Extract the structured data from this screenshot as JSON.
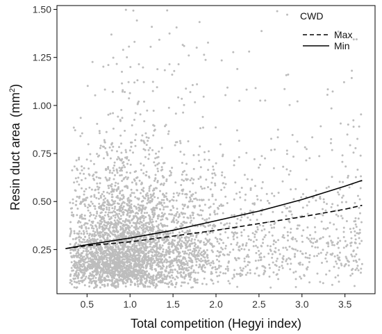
{
  "chart_data": {
    "type": "scatter",
    "xlabel": "Total competition (Hegyi index)",
    "ylabel": "Resin duct area",
    "ylabel_unit_base": "(mm",
    "ylabel_unit_sup": "2",
    "ylabel_unit_close": ")",
    "xlim": [
      0.15,
      3.85
    ],
    "ylim": [
      0.02,
      1.52
    ],
    "x_ticks": [
      0.5,
      1.0,
      1.5,
      2.0,
      2.5,
      3.0,
      3.5
    ],
    "x_tick_labels": [
      "0.5",
      "1.0",
      "1.5",
      "2.0",
      "2.5",
      "3.0",
      "3.5"
    ],
    "y_ticks": [
      0.25,
      0.5,
      0.75,
      1.0,
      1.25,
      1.5
    ],
    "y_tick_labels": [
      "0.25",
      "0.50",
      "0.75",
      "1.00",
      "1.25",
      "1.50"
    ],
    "grid": false,
    "legend": {
      "title": "CWD",
      "placement": "top-right",
      "items": [
        {
          "label": "Max",
          "style": "dashed"
        },
        {
          "label": "Min",
          "style": "solid"
        }
      ]
    },
    "point_color": "#bdbdbd",
    "line_color": "#000000",
    "scatter_points": {
      "n": 4200,
      "x_range": [
        0.3,
        3.7
      ],
      "y_range": [
        0.05,
        1.5
      ],
      "note": "dense cloud, heaviest at x 0.5-1.2, y 0.1-0.45"
    },
    "series": [
      {
        "name": "Max",
        "style": "dashed",
        "x": [
          0.25,
          0.5,
          1.0,
          1.5,
          2.0,
          2.5,
          3.0,
          3.5,
          3.7
        ],
        "y": [
          0.255,
          0.27,
          0.29,
          0.32,
          0.35,
          0.385,
          0.42,
          0.46,
          0.48
        ]
      },
      {
        "name": "Min",
        "style": "solid",
        "x": [
          0.25,
          0.5,
          1.0,
          1.5,
          2.0,
          2.5,
          3.0,
          3.5,
          3.7
        ],
        "y": [
          0.255,
          0.275,
          0.31,
          0.35,
          0.4,
          0.45,
          0.51,
          0.58,
          0.61
        ]
      }
    ]
  }
}
